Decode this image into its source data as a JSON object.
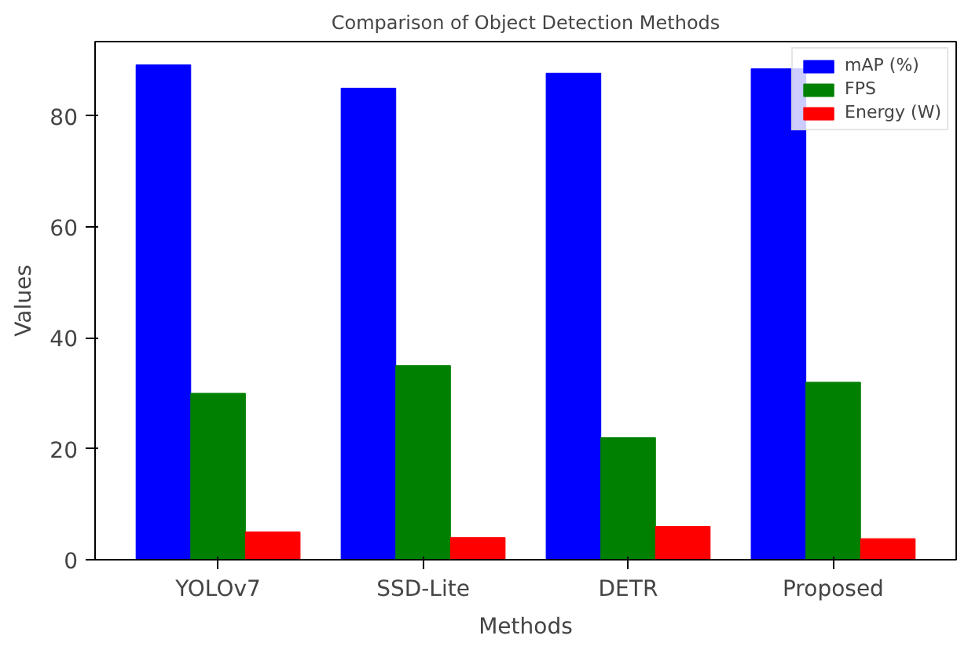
{
  "chart_data": {
    "type": "bar",
    "title": "Comparison of Object Detection Methods",
    "xlabel": "Methods",
    "ylabel": "Values",
    "categories": [
      "YOLOv7",
      "SSD-Lite",
      "DETR",
      "Proposed"
    ],
    "series": [
      {
        "name": "mAP (%)",
        "color": "#0000ff",
        "values": [
          89.2,
          85,
          87.7,
          88.5
        ]
      },
      {
        "name": "FPS",
        "color": "#008000",
        "values": [
          30,
          35,
          22,
          32
        ]
      },
      {
        "name": "Energy (W)",
        "color": "#ff0000",
        "values": [
          5,
          4,
          6,
          3.8
        ]
      }
    ],
    "ylim": [
      0,
      93.4
    ],
    "yticks": [
      0,
      20,
      40,
      60,
      80
    ],
    "grid": false,
    "legend": "top right"
  }
}
